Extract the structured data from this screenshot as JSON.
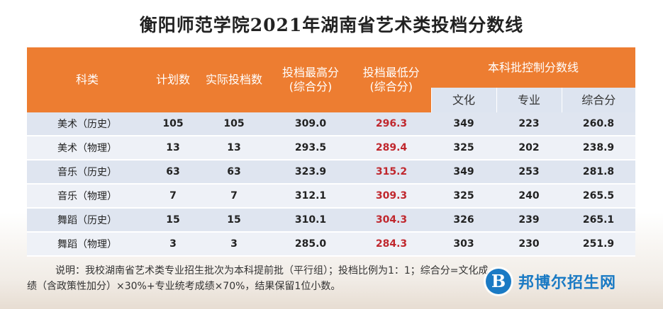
{
  "title": "衡阳师范学院2021年湖南省艺术类投档分数线",
  "table": {
    "headers": {
      "category": "科类",
      "plan": "计划数",
      "actual": "实际投档数",
      "max": "投档最高分\n(综合分)",
      "min": "投档最低分\n(综合分)",
      "control": "本科批控制分数线",
      "culture": "文化",
      "major": "专业",
      "composite": "综合分"
    },
    "rows": [
      {
        "category": "美术（历史）",
        "plan": "105",
        "actual": "105",
        "max": "309.0",
        "min": "296.3",
        "culture": "349",
        "major": "223",
        "composite": "260.8"
      },
      {
        "category": "美术（物理）",
        "plan": "13",
        "actual": "13",
        "max": "293.5",
        "min": "289.4",
        "culture": "325",
        "major": "202",
        "composite": "238.9"
      },
      {
        "category": "音乐（历史）",
        "plan": "63",
        "actual": "63",
        "max": "323.9",
        "min": "315.2",
        "culture": "349",
        "major": "253",
        "composite": "281.8"
      },
      {
        "category": "音乐（物理）",
        "plan": "7",
        "actual": "7",
        "max": "312.1",
        "min": "309.3",
        "culture": "325",
        "major": "240",
        "composite": "265.5"
      },
      {
        "category": "舞蹈（历史）",
        "plan": "15",
        "actual": "15",
        "max": "310.1",
        "min": "304.3",
        "culture": "326",
        "major": "239",
        "composite": "265.1"
      },
      {
        "category": "舞蹈（物理）",
        "plan": "3",
        "actual": "3",
        "max": "285.0",
        "min": "284.3",
        "culture": "303",
        "major": "230",
        "composite": "251.9"
      }
    ]
  },
  "note": {
    "line1": "说明：我校湖南省艺术类专业招生批次为本科提前批（平行组）；投档比例为1：1；综合分=文化成",
    "line2": "绩（含政策性加分）×30%+专业统考成绩×70%，结果保留1位小数。"
  },
  "watermark": {
    "logo_letter": "B",
    "text": "邦博尔招生网"
  },
  "colors": {
    "header": "#ed7d31",
    "row_odd": "#dfe5f0",
    "row_even": "#eef1f7",
    "min_score": "#c0272d",
    "watermark": "#1a7ac4"
  }
}
